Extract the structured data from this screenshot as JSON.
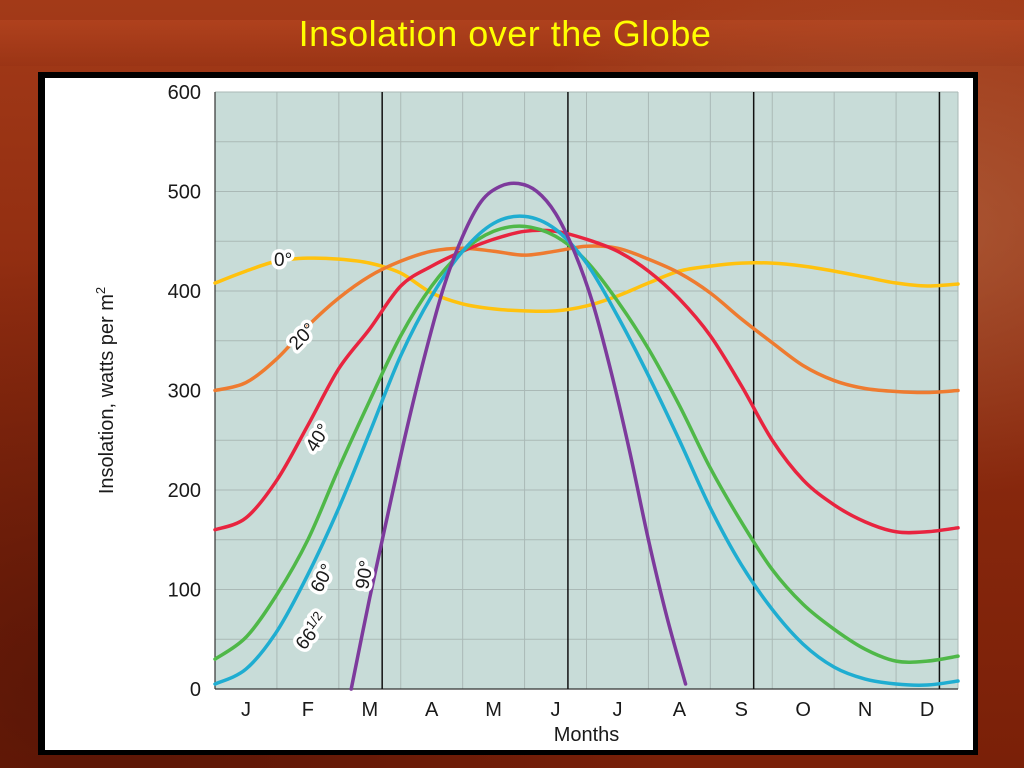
{
  "slide": {
    "title": "Insolation over the Globe"
  },
  "chart_data": {
    "type": "line",
    "title": "",
    "xlabel": "Months",
    "ylabel_main": "Insolation, watts per m",
    "ylabel_sup": "2",
    "ylim": [
      0,
      600
    ],
    "yticks": [
      "0",
      "100",
      "200",
      "300",
      "400",
      "500",
      "600"
    ],
    "months": [
      "J",
      "F",
      "M",
      "A",
      "M",
      "J",
      "J",
      "A",
      "S",
      "O",
      "N",
      "D"
    ],
    "grid": true,
    "marker_months": [
      2.7,
      5.7,
      8.7,
      11.7
    ],
    "colors": {
      "plot_bg": "#c8dcd8",
      "grid": "#aab9b6",
      "marker_line": "#111111"
    },
    "series": [
      {
        "label_main": "0°",
        "label_sup": "",
        "color": "#ffc20e",
        "label_at": {
          "month": 1.1,
          "value": 432
        },
        "label_rotate": 0,
        "points": [
          [
            0,
            408
          ],
          [
            0.5,
            420
          ],
          [
            1.0,
            430
          ],
          [
            1.5,
            433
          ],
          [
            2.0,
            432
          ],
          [
            2.5,
            428
          ],
          [
            3.0,
            418
          ],
          [
            3.5,
            398
          ],
          [
            4.0,
            387
          ],
          [
            4.5,
            382
          ],
          [
            5.0,
            380
          ],
          [
            5.5,
            380
          ],
          [
            6.0,
            385
          ],
          [
            6.5,
            395
          ],
          [
            7.0,
            408
          ],
          [
            7.5,
            420
          ],
          [
            8.0,
            425
          ],
          [
            8.5,
            428
          ],
          [
            9.0,
            428
          ],
          [
            9.5,
            425
          ],
          [
            10.0,
            420
          ],
          [
            10.5,
            414
          ],
          [
            11.0,
            408
          ],
          [
            11.5,
            405
          ],
          [
            12.0,
            407
          ]
        ]
      },
      {
        "label_main": "20°",
        "label_sup": "",
        "color": "#ee7b30",
        "label_at": {
          "month": 1.4,
          "value": 355
        },
        "label_rotate": -45,
        "points": [
          [
            0,
            300
          ],
          [
            0.5,
            308
          ],
          [
            1.0,
            332
          ],
          [
            1.5,
            365
          ],
          [
            2.0,
            393
          ],
          [
            2.5,
            415
          ],
          [
            3.0,
            430
          ],
          [
            3.5,
            440
          ],
          [
            4.0,
            443
          ],
          [
            4.5,
            440
          ],
          [
            5.0,
            436
          ],
          [
            5.5,
            440
          ],
          [
            6.0,
            445
          ],
          [
            6.5,
            443
          ],
          [
            7.0,
            432
          ],
          [
            7.5,
            418
          ],
          [
            8.0,
            398
          ],
          [
            8.5,
            372
          ],
          [
            9.0,
            348
          ],
          [
            9.5,
            325
          ],
          [
            10.0,
            310
          ],
          [
            10.5,
            302
          ],
          [
            11.0,
            299
          ],
          [
            11.5,
            298
          ],
          [
            12.0,
            300
          ]
        ]
      },
      {
        "label_main": "40°",
        "label_sup": "",
        "color": "#e8243f",
        "label_at": {
          "month": 1.65,
          "value": 253
        },
        "label_rotate": -58,
        "points": [
          [
            0,
            160
          ],
          [
            0.5,
            172
          ],
          [
            1.0,
            210
          ],
          [
            1.5,
            265
          ],
          [
            2.0,
            322
          ],
          [
            2.5,
            362
          ],
          [
            3.0,
            405
          ],
          [
            3.5,
            425
          ],
          [
            4.0,
            440
          ],
          [
            4.5,
            452
          ],
          [
            5.0,
            460
          ],
          [
            5.5,
            460
          ],
          [
            6.0,
            452
          ],
          [
            6.5,
            440
          ],
          [
            7.0,
            420
          ],
          [
            7.5,
            392
          ],
          [
            8.0,
            355
          ],
          [
            8.5,
            305
          ],
          [
            9.0,
            250
          ],
          [
            9.5,
            210
          ],
          [
            10.0,
            185
          ],
          [
            10.5,
            168
          ],
          [
            11.0,
            158
          ],
          [
            11.5,
            158
          ],
          [
            12.0,
            162
          ]
        ]
      },
      {
        "label_main": "60°",
        "label_sup": "",
        "color": "#4fb848",
        "label_at": {
          "month": 1.72,
          "value": 112
        },
        "label_rotate": -62,
        "points": [
          [
            0,
            30
          ],
          [
            0.5,
            52
          ],
          [
            1.0,
            95
          ],
          [
            1.5,
            150
          ],
          [
            2.0,
            222
          ],
          [
            2.5,
            290
          ],
          [
            3.0,
            355
          ],
          [
            3.5,
            405
          ],
          [
            4.0,
            440
          ],
          [
            4.5,
            460
          ],
          [
            5.0,
            465
          ],
          [
            5.5,
            455
          ],
          [
            6.0,
            430
          ],
          [
            6.5,
            390
          ],
          [
            7.0,
            342
          ],
          [
            7.5,
            285
          ],
          [
            8.0,
            222
          ],
          [
            8.5,
            168
          ],
          [
            9.0,
            120
          ],
          [
            9.5,
            85
          ],
          [
            10.0,
            60
          ],
          [
            10.5,
            40
          ],
          [
            11.0,
            28
          ],
          [
            11.5,
            28
          ],
          [
            12.0,
            33
          ]
        ]
      },
      {
        "label_main": "66",
        "label_sup": "1/2",
        "color": "#1fadd1",
        "label_at": {
          "month": 1.55,
          "value": 58
        },
        "label_rotate": -52,
        "points": [
          [
            0,
            5
          ],
          [
            0.5,
            20
          ],
          [
            1.0,
            58
          ],
          [
            1.5,
            115
          ],
          [
            2.0,
            182
          ],
          [
            2.5,
            258
          ],
          [
            3.0,
            335
          ],
          [
            3.5,
            395
          ],
          [
            4.0,
            440
          ],
          [
            4.5,
            468
          ],
          [
            5.0,
            475
          ],
          [
            5.5,
            462
          ],
          [
            6.0,
            428
          ],
          [
            6.5,
            375
          ],
          [
            7.0,
            315
          ],
          [
            7.5,
            250
          ],
          [
            8.0,
            182
          ],
          [
            8.5,
            125
          ],
          [
            9.0,
            80
          ],
          [
            9.5,
            45
          ],
          [
            10.0,
            22
          ],
          [
            10.5,
            10
          ],
          [
            11.0,
            5
          ],
          [
            11.5,
            4
          ],
          [
            12.0,
            8
          ]
        ]
      },
      {
        "label_main": "90°",
        "label_sup": "",
        "color": "#7d3a9c",
        "label_at": {
          "month": 2.4,
          "value": 115
        },
        "label_rotate": -80,
        "points": [
          [
            2.2,
            0
          ],
          [
            2.5,
            92
          ],
          [
            2.8,
            178
          ],
          [
            3.1,
            262
          ],
          [
            3.4,
            338
          ],
          [
            3.7,
            405
          ],
          [
            4.0,
            455
          ],
          [
            4.3,
            490
          ],
          [
            4.6,
            505
          ],
          [
            4.9,
            508
          ],
          [
            5.2,
            500
          ],
          [
            5.5,
            478
          ],
          [
            5.8,
            440
          ],
          [
            6.1,
            388
          ],
          [
            6.4,
            318
          ],
          [
            6.7,
            238
          ],
          [
            7.0,
            150
          ],
          [
            7.3,
            72
          ],
          [
            7.6,
            5
          ]
        ]
      }
    ]
  }
}
